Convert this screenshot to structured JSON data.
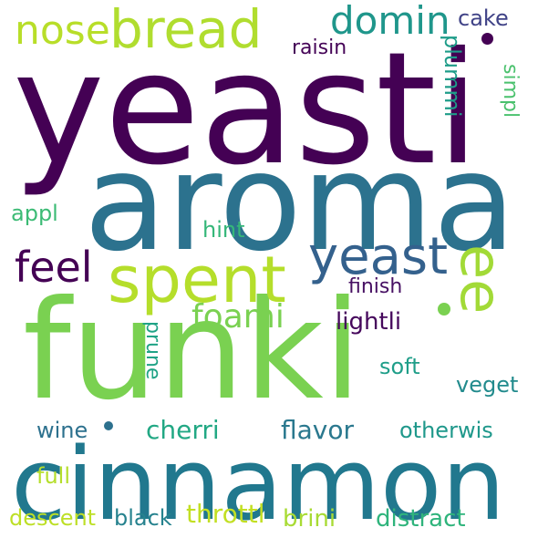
{
  "words": [
    {
      "key": "yeasti",
      "text": "yeasti",
      "color": "#440154"
    },
    {
      "key": "aroma",
      "text": "aroma",
      "color": "#2c728e"
    },
    {
      "key": "funki",
      "text": "funki",
      "color": "#7ad151"
    },
    {
      "key": "cinnamon",
      "text": "cinnamon",
      "color": "#21788e"
    },
    {
      "key": "bread",
      "text": "bread",
      "color": "#b0dd2f"
    },
    {
      "key": "spent",
      "text": "spent",
      "color": "#b5de2b"
    },
    {
      "key": "yeast",
      "text": "yeast",
      "color": "#34618d"
    },
    {
      "key": "ee",
      "text": "ee",
      "color": "#a2da37"
    },
    {
      "key": "domin",
      "text": "domin",
      "color": "#1f968b"
    },
    {
      "key": "nose",
      "text": "nose",
      "color": "#b8de29"
    },
    {
      "key": "feel",
      "text": "feel",
      "color": "#440154"
    },
    {
      "key": "foami",
      "text": "foami",
      "color": "#7ad151"
    },
    {
      "key": "cake",
      "text": "cake",
      "color": "#404387"
    },
    {
      "key": "raisin",
      "text": "raisin",
      "color": "#450457"
    },
    {
      "key": "plummi",
      "text": "plummi",
      "color": "#1e9c89"
    },
    {
      "key": "simpl",
      "text": "simpl",
      "color": "#4ac16d"
    },
    {
      "key": "appl",
      "text": "appl",
      "color": "#3cbb75"
    },
    {
      "key": "hint",
      "text": "hint",
      "color": "#35b779"
    },
    {
      "key": "finish",
      "text": "finish",
      "color": "#471063"
    },
    {
      "key": "lightli",
      "text": "lightli",
      "color": "#46085c"
    },
    {
      "key": "prune",
      "text": "prune",
      "color": "#20a386"
    },
    {
      "key": "soft",
      "text": "soft",
      "color": "#1f9e89"
    },
    {
      "key": "veget",
      "text": "veget",
      "color": "#228b8d"
    },
    {
      "key": "wine",
      "text": "wine",
      "color": "#2d718e"
    },
    {
      "key": "cherri",
      "text": "cherri",
      "color": "#22a884"
    },
    {
      "key": "flavor",
      "text": "flavor",
      "color": "#2a788e"
    },
    {
      "key": "otherwis",
      "text": "otherwis",
      "color": "#1f988b"
    },
    {
      "key": "full",
      "text": "full",
      "color": "#b5de2b"
    },
    {
      "key": "descent",
      "text": "descent",
      "color": "#bddf26"
    },
    {
      "key": "black",
      "text": "black",
      "color": "#26828e"
    },
    {
      "key": "throttl",
      "text": "throttl",
      "color": "#c2df23"
    },
    {
      "key": "brini",
      "text": "brini",
      "color": "#a8db34"
    },
    {
      "key": "distract",
      "text": "distract",
      "color": "#2fb47c"
    }
  ],
  "dots": [
    {
      "name": "yeasti-dot",
      "color": "#440154"
    },
    {
      "name": "funki-dot",
      "color": "#7ad151"
    },
    {
      "name": "wine-dot",
      "color": "#2d718e"
    }
  ]
}
